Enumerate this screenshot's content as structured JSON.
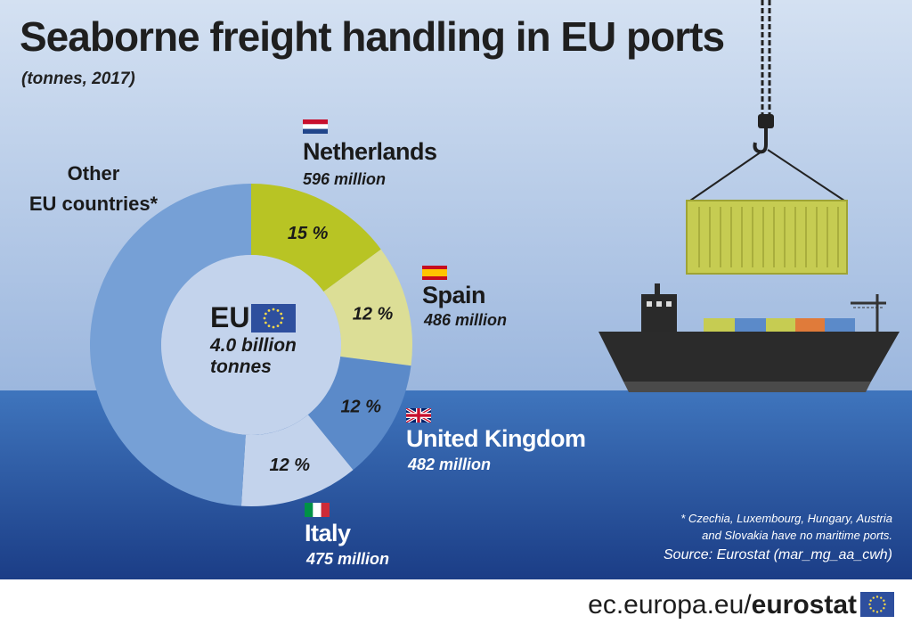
{
  "header": {
    "title": "Seaborne freight handling in EU ports",
    "subtitle": "(tonnes, 2017)"
  },
  "center": {
    "label": "EU",
    "total": "4.0 billion",
    "unit": "tonnes"
  },
  "other_label_line1": "Other",
  "other_label_line2": "EU countries*",
  "countries": [
    {
      "name": "Netherlands",
      "value_text": "596 million",
      "pct_label": "15 %",
      "flag": "netherlands-flag-icon"
    },
    {
      "name": "Spain",
      "value_text": "486 million",
      "pct_label": "12 %",
      "flag": "spain-flag-icon"
    },
    {
      "name": "United Kingdom",
      "value_text": "482 million",
      "pct_label": "12 %",
      "flag": "uk-flag-icon"
    },
    {
      "name": "Italy",
      "value_text": "475 million",
      "pct_label": "12 %",
      "flag": "italy-flag-icon"
    }
  ],
  "chart_data": {
    "type": "pie",
    "title": "Seaborne freight handling in EU ports",
    "subtitle": "(tonnes, 2017)",
    "unit": "million tonnes",
    "categories": [
      "Netherlands",
      "Spain",
      "United Kingdom",
      "Italy",
      "Other EU countries*"
    ],
    "values": [
      596,
      486,
      482,
      475,
      1961
    ],
    "percent_labels": [
      "15 %",
      "12 %",
      "12 %",
      "12 %",
      ""
    ],
    "colors": [
      "#b8c424",
      "#dcde96",
      "#5b8ac9",
      "#c3d3ec",
      "#76a0d6"
    ],
    "total": "4.0 billion tonnes",
    "donut": true
  },
  "footnote": {
    "line1": "* Czechia, Luxembourg, Hungary, Austria",
    "line2": "and Slovakia have no maritime ports."
  },
  "source": "Source: Eurostat (mar_mg_aa_cwh)",
  "footer": {
    "url_prefix": "ec.europa.eu/",
    "url_brand": "eurostat"
  },
  "colors": {
    "sky_top": "#d4e1f2",
    "sky_bottom": "#9cb7de",
    "sea_top": "#3f75bd",
    "sea_bottom": "#1b3d86"
  }
}
